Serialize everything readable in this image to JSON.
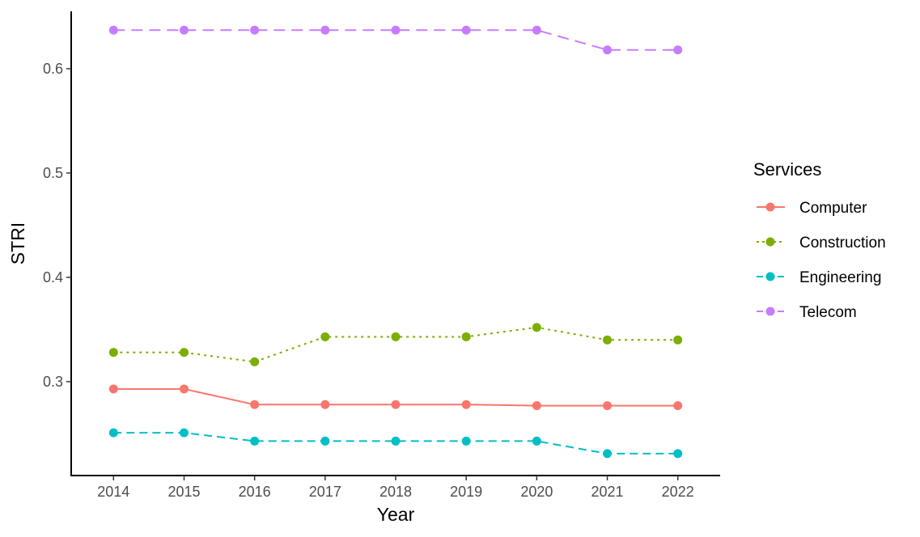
{
  "chart_data": {
    "type": "line",
    "xlabel": "Year",
    "ylabel": "STRI",
    "categories": [
      "2014",
      "2015",
      "2016",
      "2017",
      "2018",
      "2019",
      "2020",
      "2021",
      "2022"
    ],
    "x": [
      2014,
      2015,
      2016,
      2017,
      2018,
      2019,
      2020,
      2021,
      2022
    ],
    "xlim": [
      2013.4,
      2022.6
    ],
    "ylim": [
      0.21,
      0.655
    ],
    "yticks": [
      0.3,
      0.4,
      0.5,
      0.6
    ],
    "ytick_labels": [
      "0.3",
      "0.4",
      "0.5",
      "0.6"
    ],
    "grid": false,
    "legend": {
      "title": "Services",
      "position": "right"
    },
    "series": [
      {
        "name": "Computer",
        "color": "#F8766D",
        "linestyle": "solid",
        "values": [
          0.293,
          0.293,
          0.278,
          0.278,
          0.278,
          0.278,
          0.277,
          0.277,
          0.277
        ]
      },
      {
        "name": "Construction",
        "color": "#7CAE00",
        "linestyle": "dotted",
        "values": [
          0.328,
          0.328,
          0.319,
          0.343,
          0.343,
          0.343,
          0.352,
          0.34,
          0.34
        ]
      },
      {
        "name": "Engineering",
        "color": "#00BFC4",
        "linestyle": "dashed",
        "values": [
          0.251,
          0.251,
          0.243,
          0.243,
          0.243,
          0.243,
          0.243,
          0.231,
          0.231
        ]
      },
      {
        "name": "Telecom",
        "color": "#C77CFF",
        "linestyle": "longdash",
        "values": [
          0.637,
          0.637,
          0.637,
          0.637,
          0.637,
          0.637,
          0.637,
          0.618,
          0.618
        ]
      }
    ]
  }
}
